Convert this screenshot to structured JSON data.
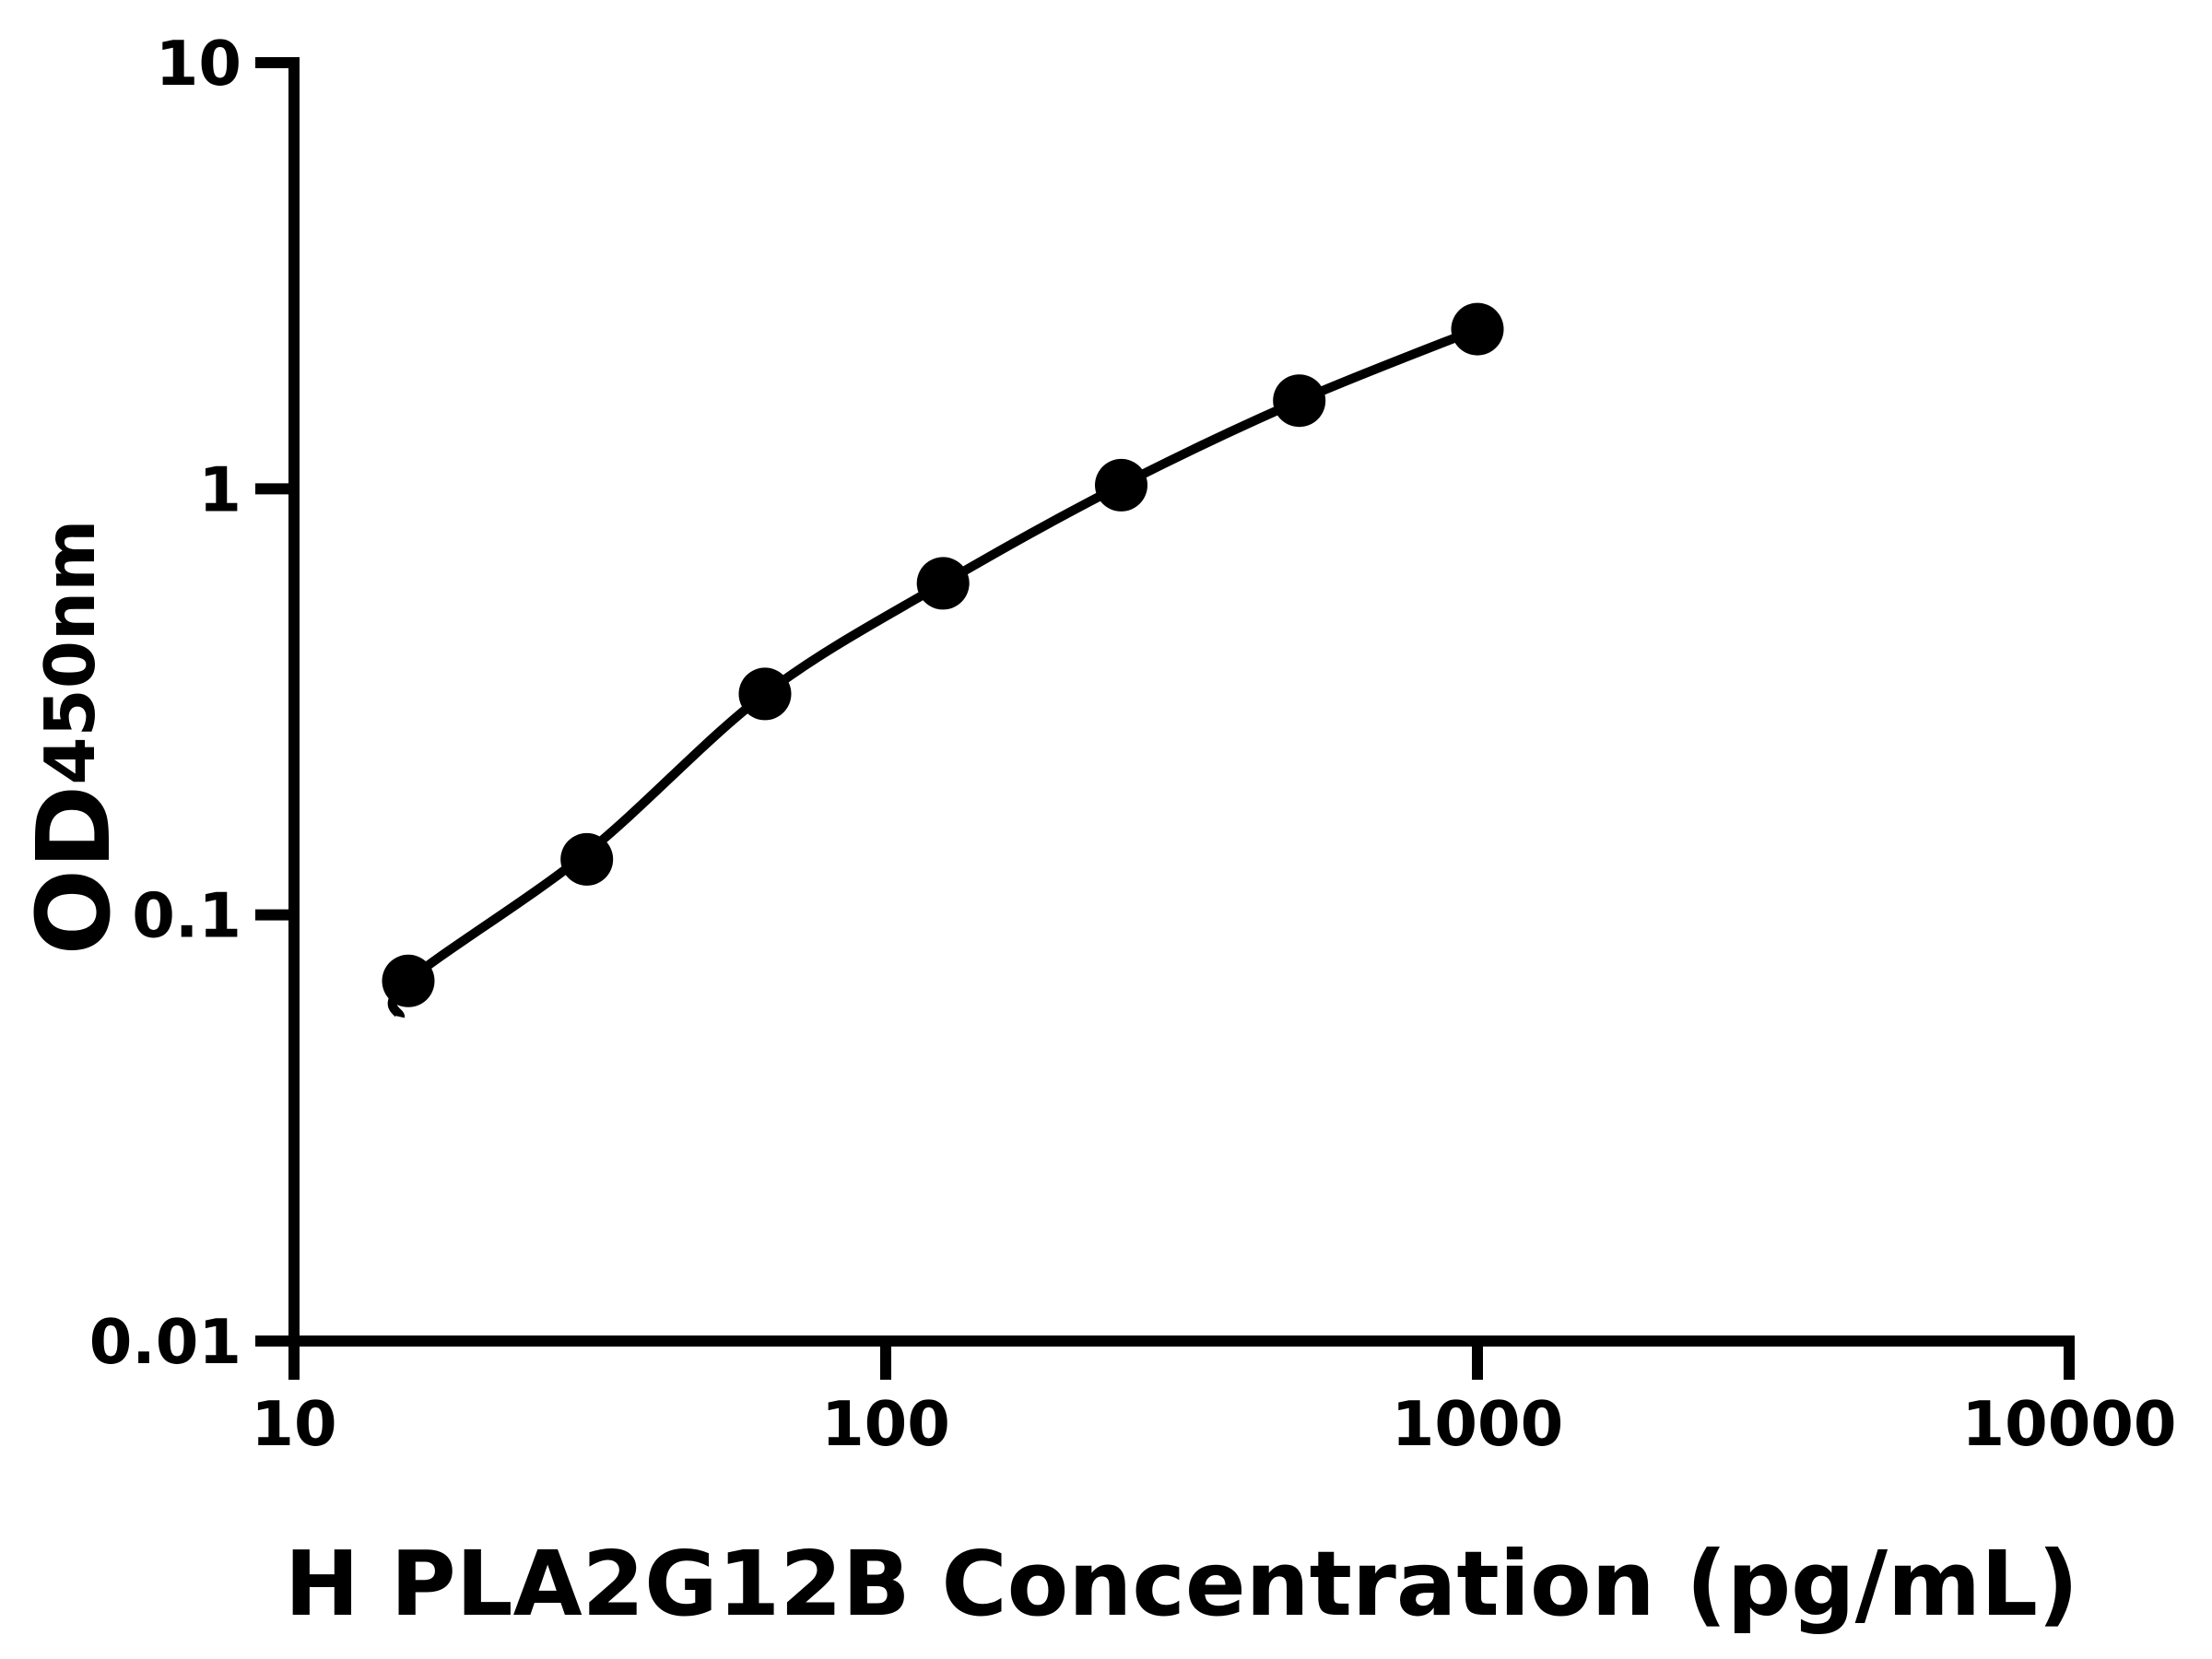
{
  "figure": {
    "background": "#ffffff",
    "foreground": "#000000"
  },
  "chart_data": {
    "type": "scatter",
    "subtype": "elisa-standard-curve",
    "title": "",
    "xlabel": "H PLA2G12B Concentration (pg/mL)",
    "ylabel": "OD450nm",
    "ylabel_main": "OD",
    "ylabel_sub": "450nm",
    "x_scale": "log10",
    "y_scale": "log10",
    "xlim": [
      10,
      10000
    ],
    "ylim": [
      0.01,
      10
    ],
    "x_ticks": [
      10,
      100,
      1000,
      10000
    ],
    "x_tick_labels": [
      "10",
      "100",
      "1000",
      "10000"
    ],
    "y_ticks": [
      10,
      1,
      0.1,
      0.01
    ],
    "y_tick_labels": [
      "10",
      "1",
      "0.1",
      "0.01"
    ],
    "grid": false,
    "legend": "none",
    "marker": {
      "shape": "filled-circle",
      "color": "#000000"
    },
    "line": {
      "style": "smooth-fit-curve",
      "color": "#000000"
    },
    "points": [
      {
        "x": 15.6,
        "y": 0.07
      },
      {
        "x": 31.25,
        "y": 0.135
      },
      {
        "x": 62.5,
        "y": 0.33
      },
      {
        "x": 125,
        "y": 0.6
      },
      {
        "x": 250,
        "y": 1.02
      },
      {
        "x": 500,
        "y": 1.61
      },
      {
        "x": 1000,
        "y": 2.37
      }
    ]
  }
}
